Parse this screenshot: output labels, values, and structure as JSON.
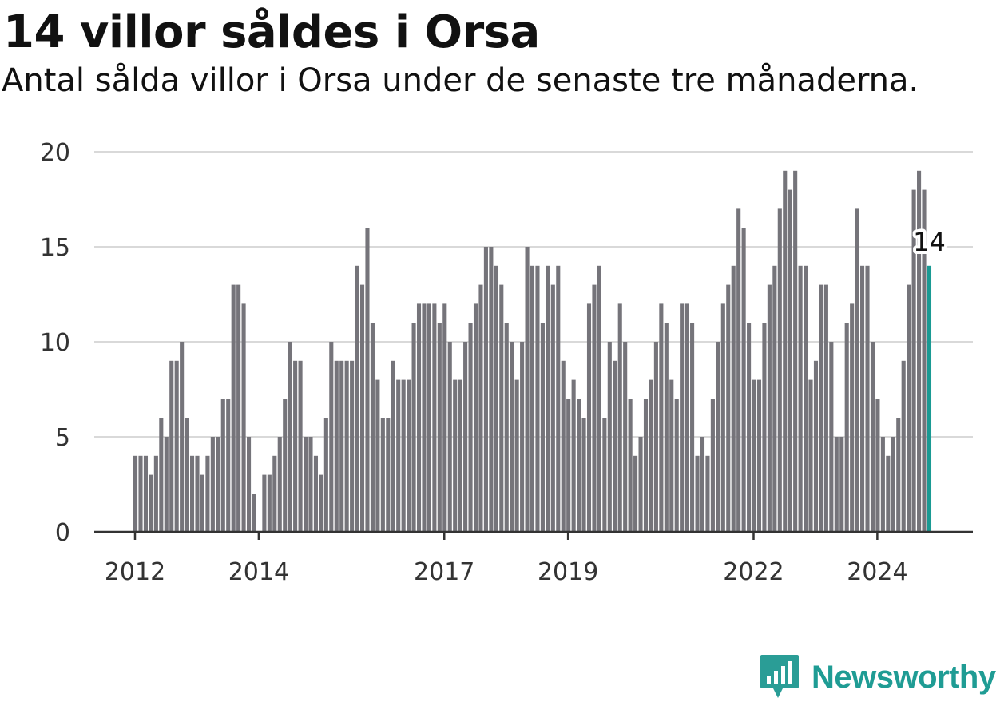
{
  "header": {
    "title": "14 villor såldes i Orsa",
    "subtitle": "Antal sålda villor i Orsa under de senaste tre månaderna."
  },
  "brand": {
    "name": "Newsworthy",
    "color": "#1f9c94"
  },
  "colors": {
    "bar": "#75747a",
    "highlight": "#1a9a93",
    "grid": "#d9d9d9",
    "axis": "#333333",
    "text": "#333333"
  },
  "chart_data": {
    "type": "bar",
    "title": "14 villor såldes i Orsa",
    "subtitle": "Antal sålda villor i Orsa under de senaste tre månaderna.",
    "start": "2012-01",
    "frequency": "monthly",
    "ylim": [
      0,
      20
    ],
    "yticks": [
      0,
      5,
      10,
      15,
      20
    ],
    "xticks": [
      "2012",
      "2014",
      "2017",
      "2019",
      "2022",
      "2024"
    ],
    "grid": true,
    "highlight_last": true,
    "last_value_label": "14",
    "values": [
      4,
      4,
      4,
      3,
      4,
      6,
      5,
      9,
      9,
      10,
      6,
      4,
      4,
      3,
      4,
      5,
      5,
      7,
      7,
      13,
      13,
      12,
      5,
      2,
      0,
      3,
      3,
      4,
      5,
      7,
      10,
      9,
      9,
      5,
      5,
      4,
      3,
      6,
      10,
      9,
      9,
      9,
      9,
      14,
      13,
      16,
      11,
      8,
      6,
      6,
      9,
      8,
      8,
      8,
      11,
      12,
      12,
      12,
      12,
      11,
      12,
      10,
      8,
      8,
      10,
      11,
      12,
      13,
      15,
      15,
      14,
      13,
      11,
      10,
      8,
      10,
      15,
      14,
      14,
      11,
      14,
      13,
      14,
      9,
      7,
      8,
      7,
      6,
      12,
      13,
      14,
      6,
      10,
      9,
      12,
      10,
      7,
      4,
      5,
      7,
      8,
      10,
      12,
      11,
      8,
      7,
      12,
      12,
      11,
      4,
      5,
      4,
      7,
      10,
      12,
      13,
      14,
      17,
      16,
      11,
      8,
      8,
      11,
      13,
      14,
      17,
      19,
      18,
      19,
      14,
      14,
      8,
      9,
      13,
      13,
      10,
      5,
      5,
      11,
      12,
      17,
      14,
      14,
      10,
      7,
      5,
      4,
      5,
      6,
      9,
      13,
      18,
      19,
      18,
      14
    ]
  }
}
